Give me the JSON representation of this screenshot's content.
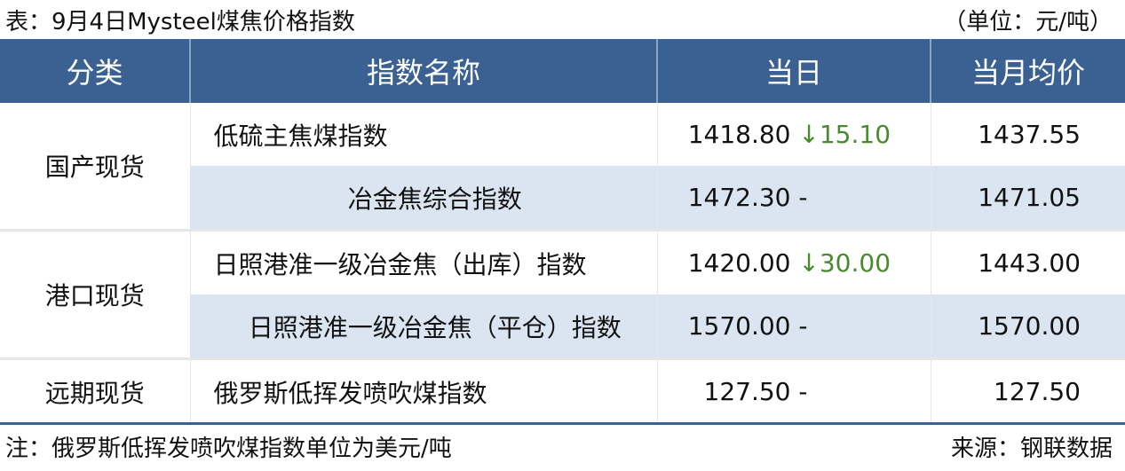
{
  "title": "表：9月4日Mysteel煤焦价格指数",
  "unit": "（单位：元/吨）",
  "headers": [
    "分类",
    "指数名称",
    "当日",
    "当月均价"
  ],
  "groups": [
    {
      "category": "国产现货",
      "rows": [
        {
          "name": "低硫主焦煤指数",
          "day": "1418.80",
          "change": "↓15.10",
          "month": "1437.55"
        },
        {
          "name": "冶金焦综合指数",
          "day": "1472.30",
          "change": "-",
          "month": "1471.05"
        }
      ]
    },
    {
      "category": "港口现货",
      "rows": [
        {
          "name": "日照港准一级冶金焦（出库）指数",
          "day": "1420.00",
          "change": "↓30.00",
          "month": "1443.00"
        },
        {
          "name": "日照港准一级冶金焦（平仓）指数",
          "day": "1570.00",
          "change": "-",
          "month": "1570.00"
        }
      ]
    },
    {
      "category": "远期现货",
      "rows": [
        {
          "name": "俄罗斯低挥发喷吹煤指数",
          "day": "127.50",
          "change": "-",
          "month": "127.50"
        }
      ]
    }
  ],
  "note": "注：俄罗斯低挥发喷吹煤指数单位为美元/吨",
  "source": "来源：钢联数据",
  "colors": {
    "header": "#3a6192",
    "alt_row": "#dbe5f1",
    "down": "#4a8a2e"
  }
}
